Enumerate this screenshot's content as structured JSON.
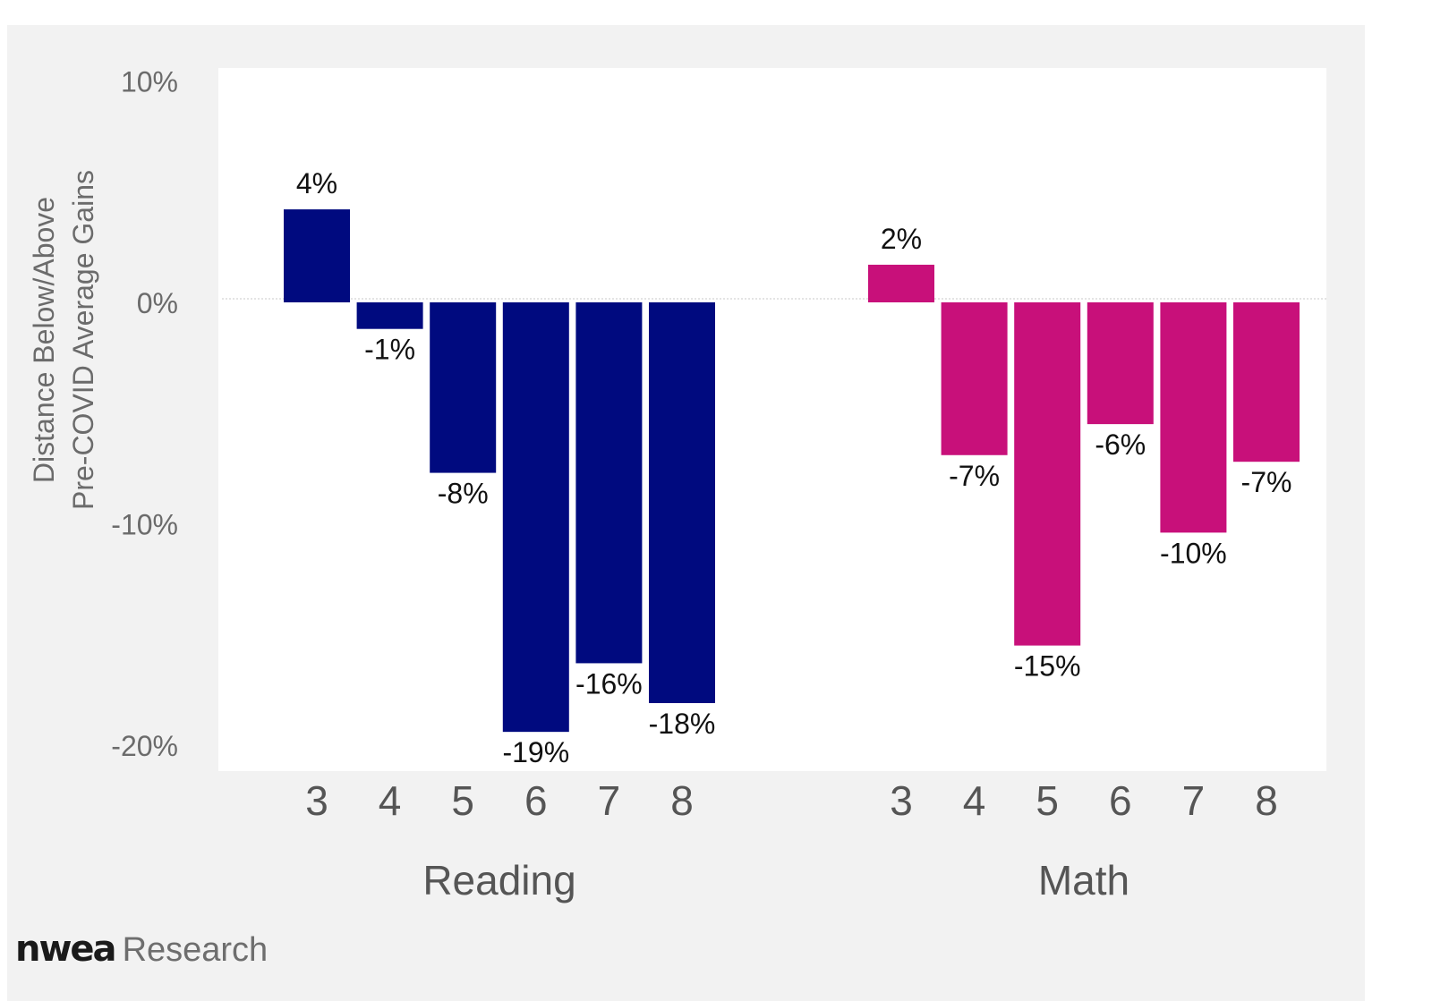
{
  "chart_data": {
    "type": "bar",
    "ylabel_lines": [
      "Distance Below/Above",
      "Pre-COVID Average Gains"
    ],
    "ylim": [
      -20,
      10
    ],
    "yticks": [
      10,
      0,
      -10,
      -20
    ],
    "ytick_labels": [
      "10%",
      "0%",
      "-10%",
      "-20%"
    ],
    "grid": false,
    "groups": [
      {
        "name": "Reading",
        "color": "#000a7f",
        "categories": [
          "3",
          "4",
          "5",
          "6",
          "7",
          "8"
        ],
        "values": [
          4.2,
          -1.2,
          -7.7,
          -19.4,
          -16.3,
          -18.1
        ],
        "labels": [
          "4%",
          "-1%",
          "-8%",
          "-19%",
          "-16%",
          "-18%"
        ]
      },
      {
        "name": "Math",
        "color": "#c8107a",
        "categories": [
          "3",
          "4",
          "5",
          "6",
          "7",
          "8"
        ],
        "values": [
          1.7,
          -6.9,
          -15.5,
          -5.5,
          -10.4,
          -7.2
        ],
        "labels": [
          "2%",
          "-7%",
          "-15%",
          "-6%",
          "-10%",
          "-7%"
        ]
      }
    ]
  },
  "branding": {
    "logo": "nwea",
    "label": "Research"
  }
}
